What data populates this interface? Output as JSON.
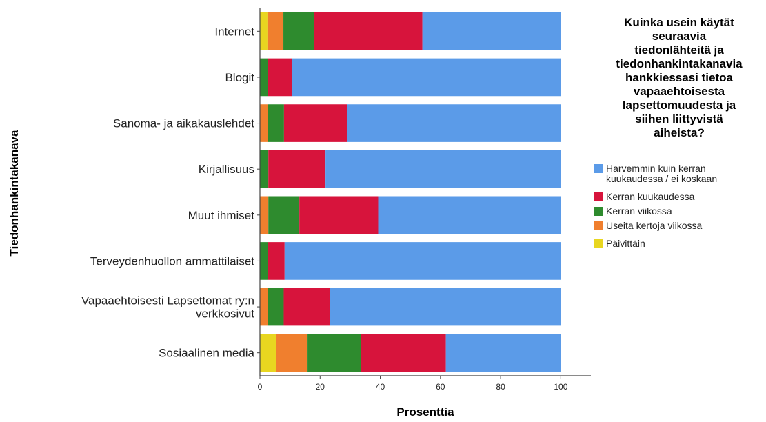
{
  "chart_data": {
    "type": "bar",
    "orientation": "horizontal",
    "stacked": true,
    "title": "",
    "xlabel": "Prosenttia",
    "ylabel": "Tiedonhankintakanava",
    "xlim": [
      0,
      110
    ],
    "xticks": [
      0,
      20,
      40,
      60,
      80,
      100
    ],
    "categories": [
      "Internet",
      "Blogit",
      "Sanoma- ja aikakauslehdet",
      "Kirjallisuus",
      "Muut ihmiset",
      "Terveydenhuollon ammattilaiset",
      "Vapaaehtoisesti Lapsettomat ry:n verkkosivut",
      "Sosiaalinen media"
    ],
    "category_lines": [
      [
        "Internet"
      ],
      [
        "Blogit"
      ],
      [
        "Sanoma- ja aikakauslehdet"
      ],
      [
        "Kirjallisuus"
      ],
      [
        "Muut ihmiset"
      ],
      [
        "Terveydenhuollon ammattilaiset"
      ],
      [
        "Vapaaehtoisesti Lapsettomat ry:n",
        "verkkosivut"
      ],
      [
        "Sosiaalinen media"
      ]
    ],
    "series": [
      {
        "name": "Päivittäin",
        "color": "#e8d620",
        "values": [
          2.5,
          0,
          0,
          0,
          0,
          0,
          0,
          5.3
        ]
      },
      {
        "name": "Useita kertoja viikossa",
        "color": "#f07f2e",
        "values": [
          5.3,
          0,
          2.7,
          0,
          2.8,
          0,
          2.6,
          10.3
        ]
      },
      {
        "name": "Kerran viikossa",
        "color": "#2e8b2e",
        "values": [
          10.3,
          2.7,
          5.3,
          2.8,
          10.3,
          2.6,
          5.3,
          18.0
        ]
      },
      {
        "name": "Kerran kuukaudessa",
        "color": "#d7143c",
        "values": [
          35.9,
          7.9,
          21.0,
          19.0,
          26.2,
          5.6,
          15.4,
          28.2
        ]
      },
      {
        "name": "Harvemmin kuin kerran kuukaudessa / ei koskaan",
        "color": "#5b9be8",
        "values": [
          46.0,
          89.4,
          71.0,
          78.2,
          60.7,
          91.8,
          76.7,
          38.2
        ]
      }
    ],
    "legend": {
      "placement": "right",
      "title_lines": [
        "Kuinka usein käytät",
        "seuraavia",
        "tiedonlähteitä ja",
        "tiedonhankintakanavia",
        "hankkiessasi tietoa",
        "vapaaehtoisesta",
        "lapsettomuudesta ja",
        "siihen liittyvistä",
        "aiheista?"
      ],
      "items": [
        {
          "lines": [
            "Harvemmin kuin kerran",
            "kuukaudessa / ei koskaan"
          ],
          "color": "#5b9be8"
        },
        {
          "lines": [
            "Kerran kuukaudessa"
          ],
          "color": "#d7143c"
        },
        {
          "lines": [
            "Kerran viikossa"
          ],
          "color": "#2e8b2e"
        },
        {
          "lines": [
            "Useita kertoja viikossa"
          ],
          "color": "#f07f2e"
        },
        {
          "lines": [
            "Päivittäin"
          ],
          "color": "#e8d620"
        }
      ]
    },
    "grid": false
  }
}
